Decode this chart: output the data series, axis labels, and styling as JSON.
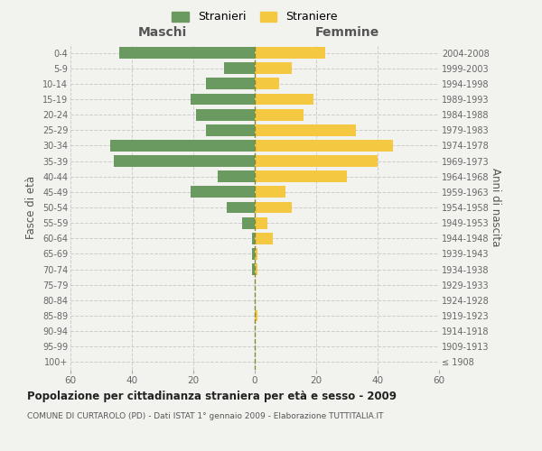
{
  "age_groups": [
    "100+",
    "95-99",
    "90-94",
    "85-89",
    "80-84",
    "75-79",
    "70-74",
    "65-69",
    "60-64",
    "55-59",
    "50-54",
    "45-49",
    "40-44",
    "35-39",
    "30-34",
    "25-29",
    "20-24",
    "15-19",
    "10-14",
    "5-9",
    "0-4"
  ],
  "birth_years": [
    "≤ 1908",
    "1909-1913",
    "1914-1918",
    "1919-1923",
    "1924-1928",
    "1929-1933",
    "1934-1938",
    "1939-1943",
    "1944-1948",
    "1949-1953",
    "1954-1958",
    "1959-1963",
    "1964-1968",
    "1969-1973",
    "1974-1978",
    "1979-1983",
    "1984-1988",
    "1989-1993",
    "1994-1998",
    "1999-2003",
    "2004-2008"
  ],
  "maschi": [
    0,
    0,
    0,
    0,
    0,
    0,
    1,
    1,
    1,
    4,
    9,
    21,
    12,
    46,
    47,
    16,
    19,
    21,
    16,
    10,
    44
  ],
  "femmine": [
    0,
    0,
    0,
    1,
    0,
    0,
    1,
    1,
    6,
    4,
    12,
    10,
    30,
    40,
    45,
    33,
    16,
    19,
    8,
    12,
    23
  ],
  "maschi_color": "#6a9a5f",
  "femmine_color": "#f5c842",
  "background_color": "#f2f2ee",
  "grid_color": "#cccccc",
  "title": "Popolazione per cittadinanza straniera per età e sesso - 2009",
  "subtitle": "COMUNE DI CURTAROLO (PD) - Dati ISTAT 1° gennaio 2009 - Elaborazione TUTTITALIA.IT",
  "xlabel_left": "Maschi",
  "xlabel_right": "Femmine",
  "ylabel_left": "Fasce di età",
  "ylabel_right": "Anni di nascita",
  "legend_maschi": "Stranieri",
  "legend_femmine": "Straniere",
  "xlim": 60,
  "bar_height": 0.75
}
